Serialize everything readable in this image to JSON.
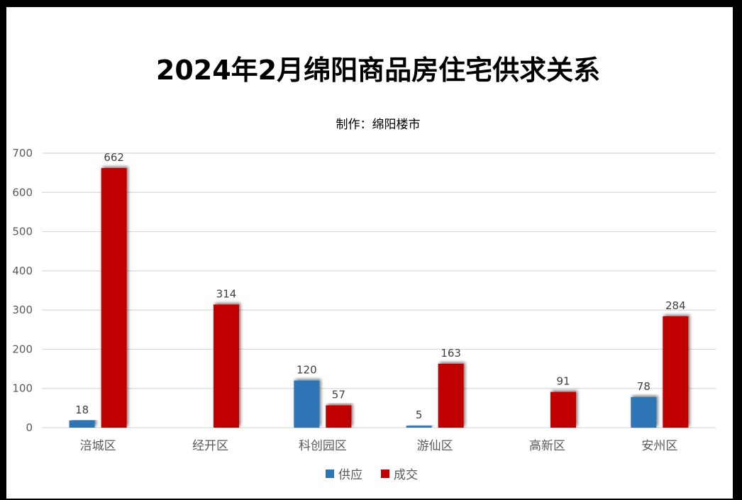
{
  "chart_data": {
    "type": "bar",
    "title": "2024年2月绵阳商品房住宅供求关系",
    "subtitle": "制作：绵阳楼市",
    "categories": [
      "涪城区",
      "经开区",
      "科创园区",
      "游仙区",
      "高新区",
      "安州区"
    ],
    "series": [
      {
        "name": "供应",
        "color": "#2e75b6",
        "values": [
          18,
          null,
          120,
          5,
          null,
          78
        ]
      },
      {
        "name": "成交",
        "color": "#c00000",
        "values": [
          662,
          314,
          57,
          163,
          91,
          284
        ]
      }
    ],
    "ylim": [
      0,
      700
    ],
    "yticks": [
      0,
      100,
      200,
      300,
      400,
      500,
      600,
      700
    ],
    "grid": true,
    "legend": "bottom"
  }
}
